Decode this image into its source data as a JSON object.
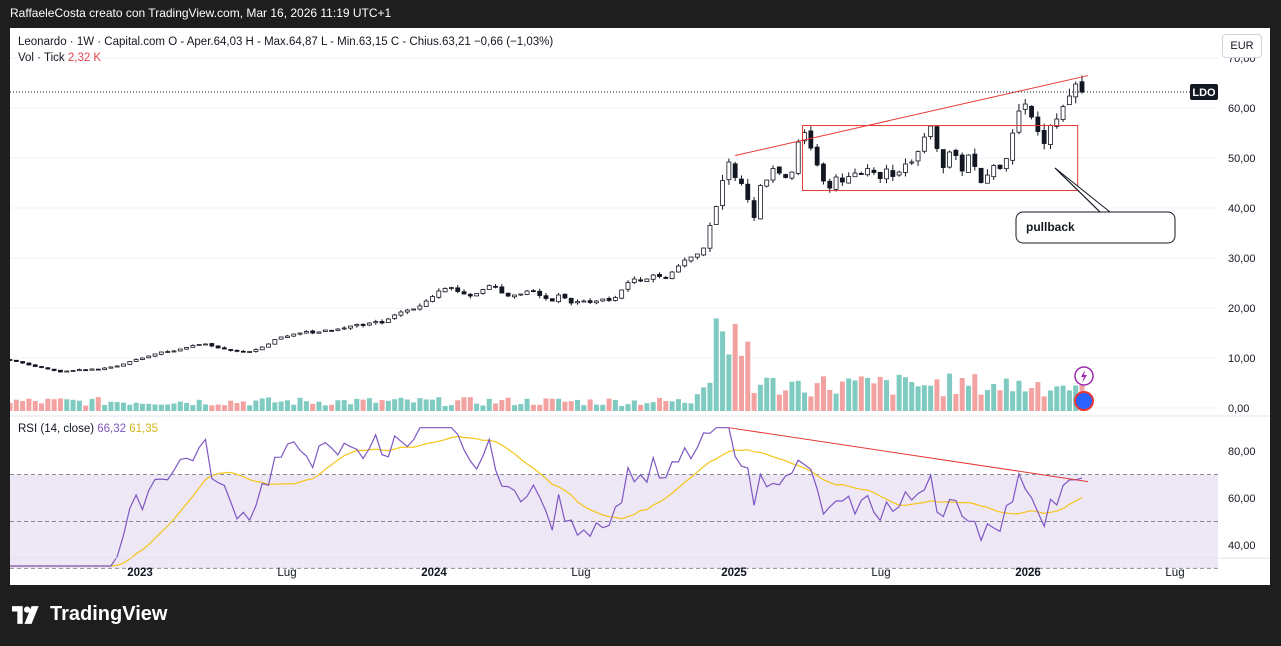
{
  "header": {
    "attribution": "RaffaeleCosta creato con TradingView.com, Mar 16, 2026 11:19 UTC+1"
  },
  "legend": {
    "line1": "Leonardo · 1W · Capital.com  O - Aper.64,03  H - Max.64,87  L - Min.63,15  C - Chius.63,21  −0,66 (−1,03%)",
    "vol_label": "Vol · Tick",
    "vol_value": "2,32 K",
    "rsi_label": "RSI (14, close)",
    "rsi_value": "66,32",
    "rsi_ma_value": "61,35"
  },
  "currency": "EUR",
  "footer": {
    "brand": "TradingView"
  },
  "colors": {
    "up": "#26a69a",
    "down": "#ef5350",
    "vol_up": "#7fcbc2",
    "vol_down": "#f2a2a0",
    "rsi": "#7e57c2",
    "rsi_ma": "#f5c518",
    "rsi_band": "#ede7f6",
    "annot": "#e53935"
  },
  "chart_data": [
    {
      "type": "candlestick",
      "title": "Leonardo · 1W · Capital.com",
      "ylim": [
        0,
        72
      ],
      "y_ticks": [
        "70,00",
        "60,00",
        "50,00",
        "40,00",
        "30,00",
        "20,00",
        "10,00",
        "0,00"
      ],
      "x_ticks": [
        "2023",
        "Lug",
        "2024",
        "Lug",
        "2025",
        "Lug",
        "2026",
        "Lug"
      ],
      "last_price_label": "LDO",
      "last_price": 63.21,
      "annotations": [
        {
          "type": "text_box",
          "text": "pullback"
        },
        {
          "type": "trendline",
          "x": [
            "2025-03-03",
            "2026-03-09"
          ],
          "y": [
            50.5,
            66.5
          ]
        },
        {
          "type": "rectangle",
          "x": [
            "2025-06-02",
            "2025-12-29"
          ],
          "y": [
            43.5,
            56.5
          ]
        }
      ],
      "weeks_step_note": "weekly candles Nov 2022 – Mar 2026",
      "closes": [
        9.6,
        9.3,
        9.0,
        8.6,
        8.3,
        8.1,
        7.8,
        7.5,
        7.2,
        7.4,
        7.5,
        7.7,
        7.6,
        7.8,
        7.7,
        8.0,
        8.2,
        8.4,
        8.8,
        9.3,
        9.7,
        10.0,
        10.4,
        10.8,
        11.2,
        11.3,
        11.4,
        11.8,
        12.1,
        12.5,
        12.7,
        12.8,
        12.4,
        12.0,
        11.8,
        11.5,
        11.4,
        11.2,
        11.3,
        11.7,
        12.2,
        12.8,
        13.7,
        14.2,
        14.4,
        14.8,
        15.0,
        15.3,
        15.0,
        15.2,
        15.6,
        15.5,
        15.8,
        16.0,
        16.4,
        16.7,
        16.5,
        17.0,
        17.3,
        17.0,
        17.8,
        18.6,
        19.2,
        19.6,
        19.8,
        20.4,
        21.4,
        22.3,
        23.4,
        23.9,
        24.1,
        23.3,
        22.8,
        22.4,
        22.9,
        23.7,
        24.5,
        24.2,
        23.0,
        22.4,
        22.6,
        22.8,
        23.4,
        23.3,
        22.5,
        21.9,
        21.4,
        22.6,
        22.0,
        21.0,
        21.3,
        21.4,
        21.1,
        21.4,
        21.8,
        21.5,
        22.1,
        23.6,
        25.1,
        25.8,
        25.4,
        25.8,
        26.6,
        26.3,
        25.9,
        27.2,
        28.4,
        29.6,
        30.2,
        30.8,
        32.0,
        36.5,
        40.3,
        45.5,
        49.2,
        46.1,
        44.9,
        41.7,
        38.1,
        44.5,
        45.6,
        47.9,
        47.0,
        46.1,
        47.2,
        53.2,
        55.1,
        52.0,
        48.6,
        45.4,
        44.0,
        46.2,
        45.2,
        46.3,
        47.0,
        46.7,
        47.9,
        47.1,
        45.9,
        47.8,
        46.3,
        47.2,
        48.8,
        49.2,
        51.3,
        54.2,
        56.4,
        51.9,
        48.1,
        51.2,
        50.5,
        47.4,
        50.6,
        48.3,
        45.1,
        46.6,
        48.5,
        47.9,
        49.9,
        55.0,
        59.4,
        60.8,
        58.2,
        55.3,
        52.9,
        56.5,
        57.8,
        60.3,
        62.4,
        64.8,
        63.2
      ],
      "rsi_note": "RSI(14) and its moving average shown in lower pane",
      "rsi_ylim": [
        28,
        92
      ],
      "rsi_ticks": [
        "80,00",
        "60,00",
        "40,00"
      ],
      "rsi_bands": [
        70,
        50,
        30
      ]
    }
  ]
}
